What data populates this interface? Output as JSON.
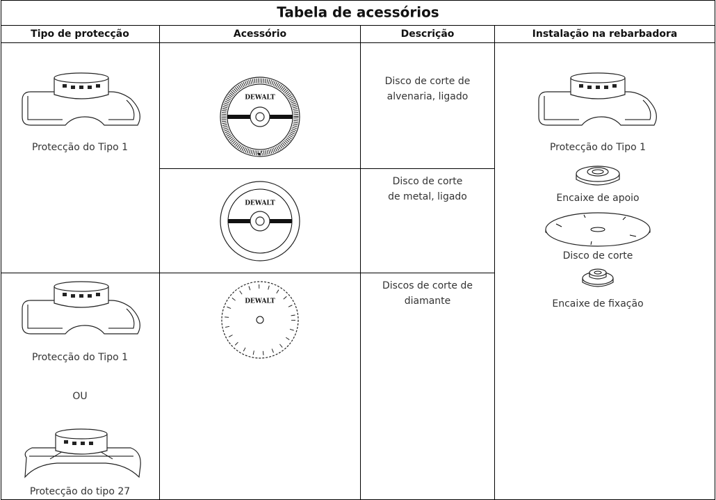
{
  "table": {
    "title": "Tabela de acessórios",
    "headers": [
      "Tipo de protecção",
      "Acessório",
      "Descrição",
      "Instalação na rebarbadora"
    ],
    "logo": "DEWALT",
    "guards": [
      {
        "label": "Protecção do Tipo 1"
      },
      {
        "label": "Protecção do Tipo 1",
        "or": "OU",
        "alt_label": "Protecção do tipo 27"
      }
    ],
    "descriptions": [
      [
        "Disco de corte de",
        "alvenaria, ligado"
      ],
      [
        "Disco de corte",
        "de metal, ligado"
      ],
      [
        "Discos de corte de",
        "diamante"
      ]
    ],
    "installation": [
      "Protecção do Tipo 1",
      "Encaixe de apoio",
      "Disco de corte",
      "Encaixe de fixação"
    ]
  }
}
